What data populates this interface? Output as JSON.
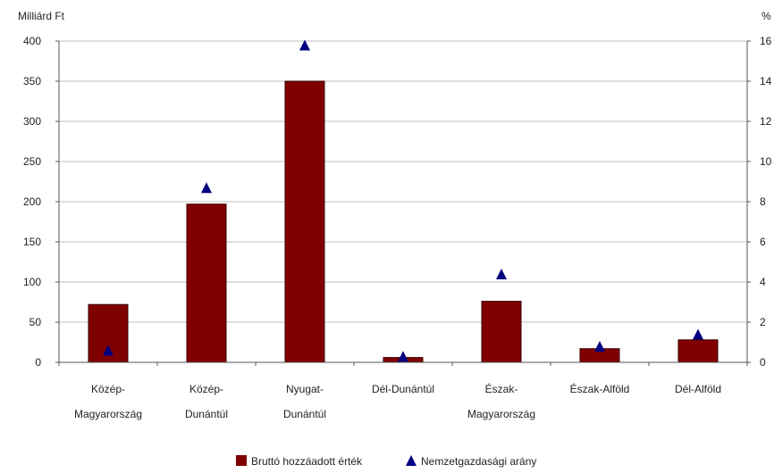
{
  "chart_data": {
    "type": "bar",
    "categories": [
      [
        "Közép-",
        "Magyarország"
      ],
      [
        "Közép-",
        "Dunántúl"
      ],
      [
        "Nyugat-",
        "Dunántúl"
      ],
      [
        "Dél-Dunántúl"
      ],
      [
        "Észak-",
        "Magyarország"
      ],
      [
        "Észak-Alföld"
      ],
      [
        "Dél-Alföld"
      ]
    ],
    "series": [
      {
        "name": "Bruttó hozzáadott érték",
        "kind": "bar",
        "axis": "left",
        "color": "#800000",
        "values": [
          72,
          197,
          350,
          6,
          76,
          17,
          28
        ]
      },
      {
        "name": "Nemzetgazdasági arány",
        "kind": "marker",
        "marker": "triangle",
        "axis": "right",
        "color": "#000080",
        "values": [
          0.6,
          8.7,
          15.8,
          0.3,
          4.4,
          0.8,
          1.4
        ]
      }
    ],
    "ylabel_left": "Milliárd Ft",
    "ylabel_right": "%",
    "ylim_left": [
      0,
      400
    ],
    "yticks_left": [
      0,
      50,
      100,
      150,
      200,
      250,
      300,
      350,
      400
    ],
    "ylim_right": [
      0,
      16
    ],
    "yticks_right": [
      0,
      2,
      4,
      6,
      8,
      10,
      12,
      14,
      16
    ],
    "grid": true,
    "legend_position": "bottom-center"
  }
}
